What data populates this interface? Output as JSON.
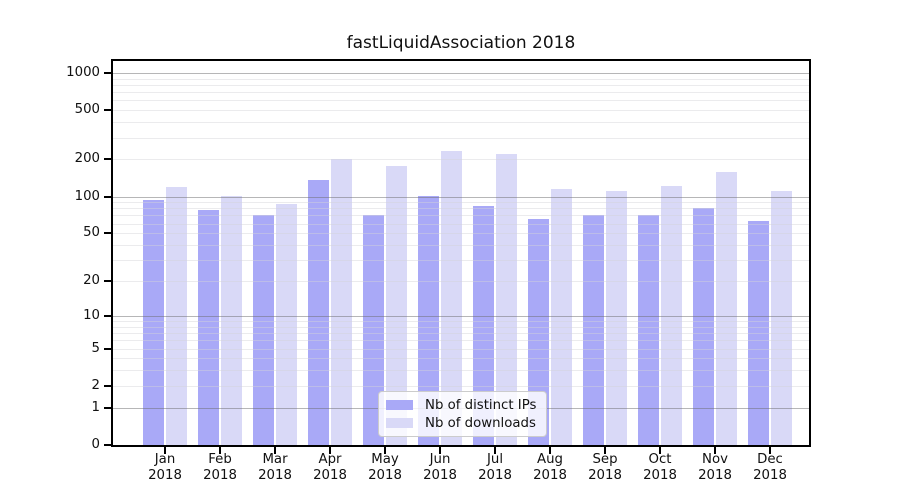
{
  "title": "fastLiquidAssociation 2018",
  "chart_data": {
    "type": "bar",
    "title": "fastLiquidAssociation 2018",
    "categories": [
      "Jan 2018",
      "Feb 2018",
      "Mar 2018",
      "Apr 2018",
      "May 2018",
      "Jun 2018",
      "Jul 2018",
      "Aug 2018",
      "Sep 2018",
      "Oct 2018",
      "Nov 2018",
      "Dec 2018"
    ],
    "series": [
      {
        "name": "Nb of distinct IPs",
        "color": "#a9a9f7",
        "values": [
          93,
          78,
          71,
          137,
          70,
          100,
          84,
          66,
          71,
          70,
          81,
          63
        ]
      },
      {
        "name": "Nb of downloads",
        "color": "#d9d9f7",
        "values": [
          120,
          101,
          86,
          202,
          177,
          236,
          220,
          115,
          111,
          122,
          158,
          111
        ]
      }
    ],
    "xlabel": "",
    "ylabel": "",
    "yscale": "log10(value+1)",
    "ytick_values": [
      1000,
      500,
      200,
      100,
      50,
      20,
      10,
      5,
      2,
      1,
      0
    ],
    "ytick_labels": [
      "1000",
      "500",
      "200",
      "100",
      "50",
      "20",
      "10",
      "5",
      "2",
      "1",
      "0"
    ],
    "minor_grid_values": [
      2,
      3,
      4,
      5,
      6,
      7,
      8,
      9,
      20,
      30,
      40,
      50,
      60,
      70,
      80,
      90,
      200,
      300,
      400,
      500,
      600,
      700,
      800,
      900
    ],
    "major_grid_values": [
      1,
      10,
      100,
      1000
    ],
    "ylim": [
      0,
      1270
    ],
    "grid": "on",
    "legend_position": "lower-center"
  }
}
